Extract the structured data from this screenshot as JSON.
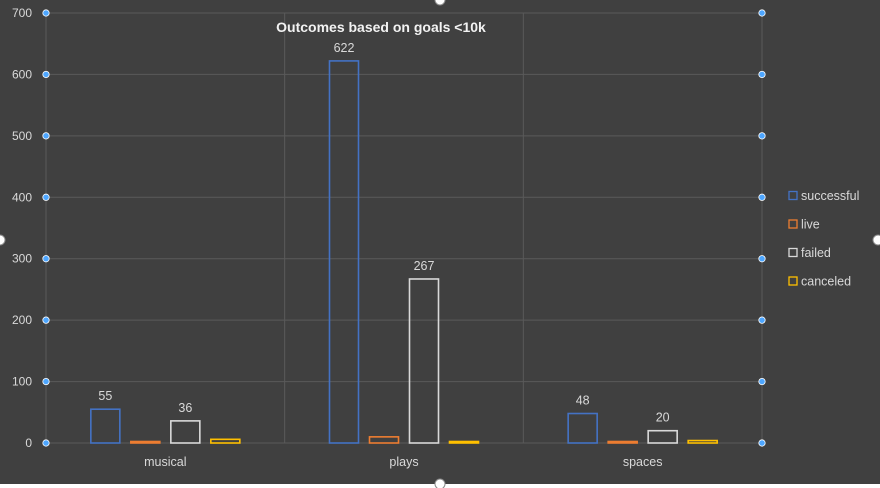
{
  "colors": {
    "background": "#404040",
    "gridline": "#5a5a5a",
    "axis_text": "#d9d9d9",
    "handle": "#4da6ff",
    "title": "#f2f2f2"
  },
  "chart_data": {
    "type": "bar",
    "title": "Outcomes based on goals <10k",
    "xlabel": "",
    "ylabel": "",
    "categories": [
      "musical",
      "plays",
      "spaces"
    ],
    "ylim": [
      0,
      700
    ],
    "yticks": [
      0,
      100,
      200,
      300,
      400,
      500,
      600,
      700
    ],
    "grid": true,
    "legend_position": "right",
    "series": [
      {
        "name": "successful",
        "color": "#4472c4",
        "values": [
          55,
          622,
          48
        ],
        "labels": [
          "55",
          "622",
          "48"
        ]
      },
      {
        "name": "live",
        "color": "#ed7d31",
        "values": [
          0,
          10,
          1
        ],
        "labels": [
          "",
          "",
          ""
        ]
      },
      {
        "name": "failed",
        "color": "#d9d9d9",
        "values": [
          36,
          267,
          20
        ],
        "labels": [
          "36",
          "267",
          "20"
        ]
      },
      {
        "name": "canceled",
        "color": "#ffc000",
        "values": [
          6,
          0,
          4
        ],
        "labels": [
          "",
          "",
          ""
        ]
      }
    ]
  }
}
